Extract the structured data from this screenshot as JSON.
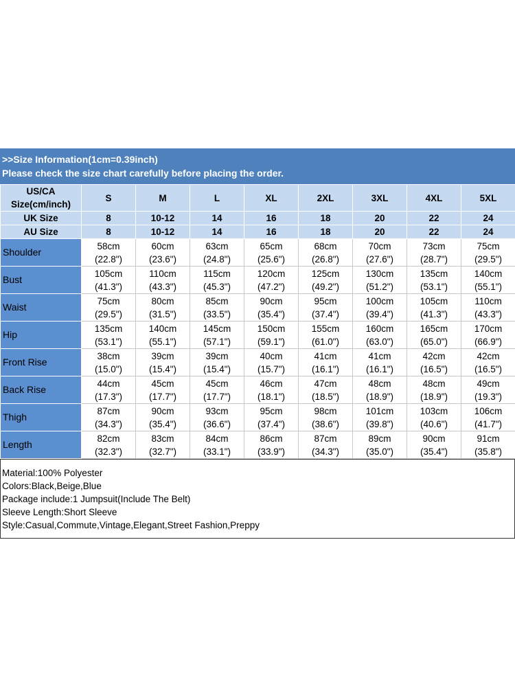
{
  "header": {
    "lines": [
      ">>Size Information(1cm=0.39inch)",
      "Please check the size chart carefully before placing the order."
    ]
  },
  "table": {
    "columns": [
      "US/CA Size(cm/inch)",
      "S",
      "M",
      "L",
      "XL",
      "2XL",
      "3XL",
      "4XL",
      "5XL"
    ],
    "size_rows": [
      [
        "UK Size",
        "8",
        "10-12",
        "14",
        "16",
        "18",
        "20",
        "22",
        "24"
      ],
      [
        "AU Size",
        "8",
        "10-12",
        "14",
        "16",
        "18",
        "20",
        "22",
        "24"
      ]
    ],
    "rows": [
      {
        "label": "Shoulder",
        "cells": [
          [
            "58cm",
            "(22.8\")"
          ],
          [
            "60cm",
            "(23.6\")"
          ],
          [
            "63cm",
            "(24.8\")"
          ],
          [
            "65cm",
            "(25.6\")"
          ],
          [
            "68cm",
            "(26.8\")"
          ],
          [
            "70cm",
            "(27.6\")"
          ],
          [
            "73cm",
            "(28.7\")"
          ],
          [
            "75cm",
            "(29.5\")"
          ]
        ]
      },
      {
        "label": "Bust",
        "cells": [
          [
            "105cm",
            "(41.3\")"
          ],
          [
            "110cm",
            "(43.3\")"
          ],
          [
            "115cm",
            "(45.3\")"
          ],
          [
            "120cm",
            "(47.2\")"
          ],
          [
            "125cm",
            "(49.2\")"
          ],
          [
            "130cm",
            "(51.2\")"
          ],
          [
            "135cm",
            "(53.1\")"
          ],
          [
            "140cm",
            "(55.1\")"
          ]
        ]
      },
      {
        "label": "Waist",
        "cells": [
          [
            "75cm",
            "(29.5\")"
          ],
          [
            "80cm",
            "(31.5\")"
          ],
          [
            "85cm",
            "(33.5\")"
          ],
          [
            "90cm",
            "(35.4\")"
          ],
          [
            "95cm",
            "(37.4\")"
          ],
          [
            "100cm",
            "(39.4\")"
          ],
          [
            "105cm",
            "(41.3\")"
          ],
          [
            "110cm",
            "(43.3\")"
          ]
        ]
      },
      {
        "label": "Hip",
        "cells": [
          [
            "135cm",
            "(53.1\")"
          ],
          [
            "140cm",
            "(55.1\")"
          ],
          [
            "145cm",
            "(57.1\")"
          ],
          [
            "150cm",
            "(59.1\")"
          ],
          [
            "155cm",
            "(61.0\")"
          ],
          [
            "160cm",
            "(63.0\")"
          ],
          [
            "165cm",
            "(65.0\")"
          ],
          [
            "170cm",
            "(66.9\")"
          ]
        ]
      },
      {
        "label": "Front Rise",
        "cells": [
          [
            "38cm",
            "(15.0\")"
          ],
          [
            "39cm",
            "(15.4\")"
          ],
          [
            "39cm",
            "(15.4\")"
          ],
          [
            "40cm",
            "(15.7\")"
          ],
          [
            "41cm",
            "(16.1\")"
          ],
          [
            "41cm",
            "(16.1\")"
          ],
          [
            "42cm",
            "(16.5\")"
          ],
          [
            "42cm",
            "(16.5\")"
          ]
        ]
      },
      {
        "label": "Back Rise",
        "cells": [
          [
            "44cm",
            "(17.3\")"
          ],
          [
            "45cm",
            "(17.7\")"
          ],
          [
            "45cm",
            "(17.7\")"
          ],
          [
            "46cm",
            "(18.1\")"
          ],
          [
            "47cm",
            "(18.5\")"
          ],
          [
            "48cm",
            "(18.9\")"
          ],
          [
            "48cm",
            "(18.9\")"
          ],
          [
            "49cm",
            "(19.3\")"
          ]
        ]
      },
      {
        "label": "Thigh",
        "cells": [
          [
            "87cm",
            "(34.3\")"
          ],
          [
            "90cm",
            "(35.4\")"
          ],
          [
            "93cm",
            "(36.6\")"
          ],
          [
            "95cm",
            "(37.4\")"
          ],
          [
            "98cm",
            "(38.6\")"
          ],
          [
            "101cm",
            "(39.8\")"
          ],
          [
            "103cm",
            "(40.6\")"
          ],
          [
            "106cm",
            "(41.7\")"
          ]
        ]
      },
      {
        "label": "Length",
        "cells": [
          [
            "82cm",
            "(32.3\")"
          ],
          [
            "83cm",
            "(32.7\")"
          ],
          [
            "84cm",
            "(33.1\")"
          ],
          [
            "86cm",
            "(33.9\")"
          ],
          [
            "87cm",
            "(34.3\")"
          ],
          [
            "89cm",
            "(35.0\")"
          ],
          [
            "90cm",
            "(35.4\")"
          ],
          [
            "91cm",
            "(35.8\")"
          ]
        ]
      }
    ]
  },
  "details": [
    "Material:100% Polyester",
    "Colors:Black,Beige,Blue",
    "Package include:1 Jumpsuit(Include The Belt)",
    "Sleeve Length:Short Sleeve",
    "Style:Casual,Commute,Vintage,Elegant,Street Fashion,Preppy"
  ]
}
